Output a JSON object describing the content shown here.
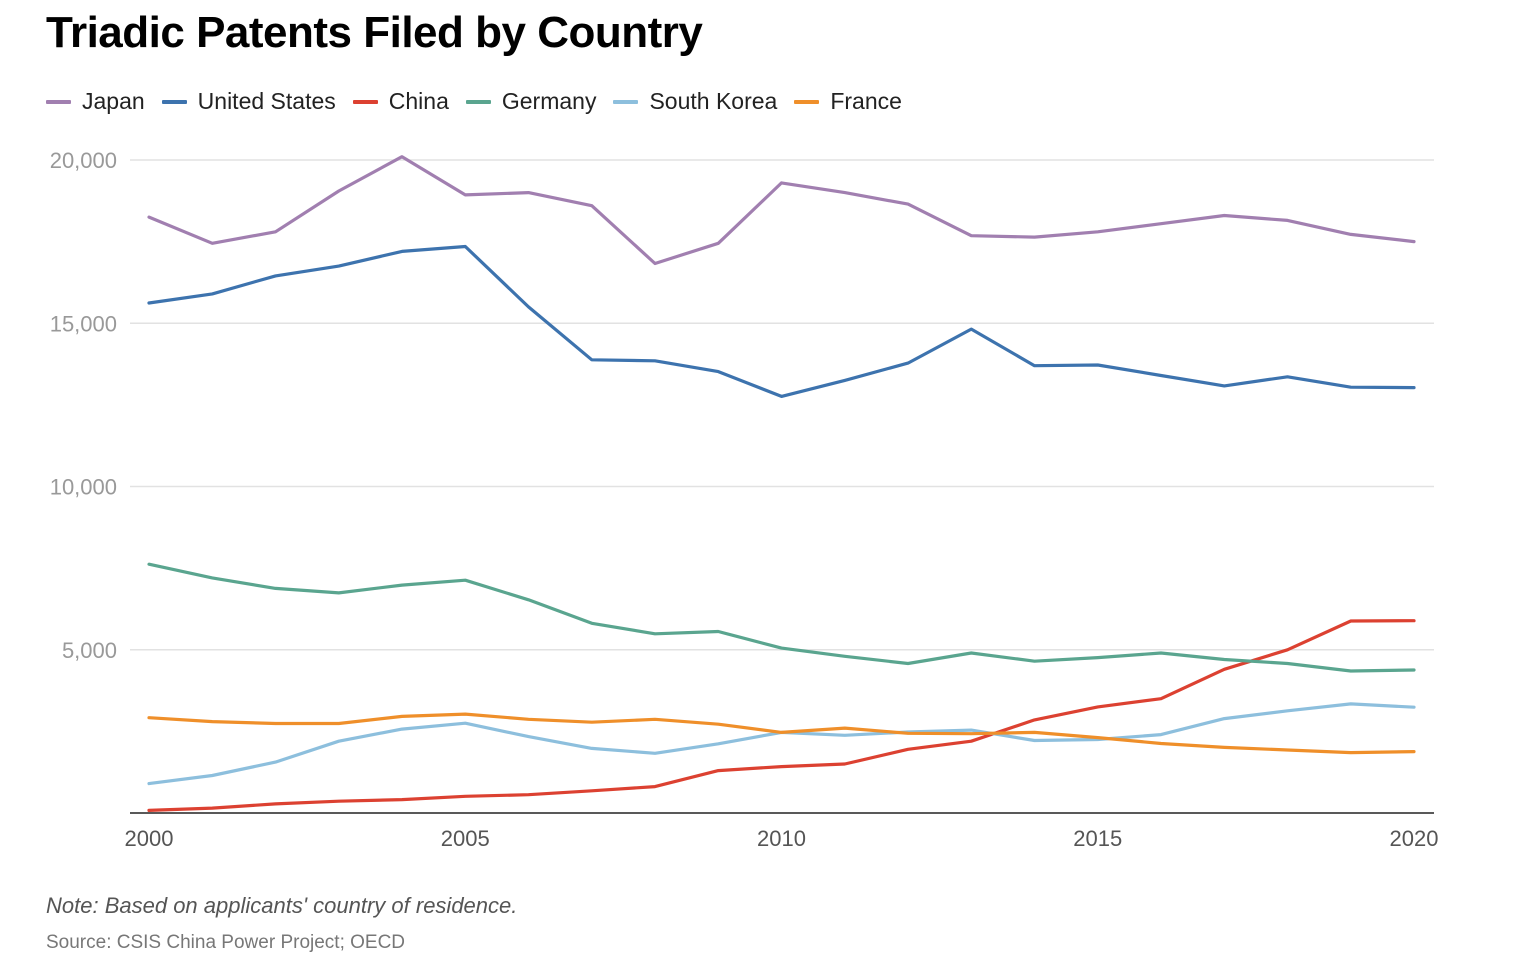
{
  "chart_data": {
    "type": "line",
    "title": "Triadic Patents Filed by Country",
    "xlabel": "",
    "ylabel": "",
    "x": [
      2000,
      2001,
      2002,
      2003,
      2004,
      2005,
      2006,
      2007,
      2008,
      2009,
      2010,
      2011,
      2012,
      2013,
      2014,
      2015,
      2016,
      2017,
      2018,
      2019,
      2020
    ],
    "xlim": [
      2000,
      2020
    ],
    "ylim": [
      0,
      20000
    ],
    "x_ticks": [
      "2000",
      "2005",
      "2010",
      "2015",
      "2020"
    ],
    "y_ticks": [
      "5,000",
      "10,000",
      "15,000",
      "20,000"
    ],
    "legend_position": "top-left",
    "grid": true,
    "series": [
      {
        "name": "Japan",
        "color": "#a17fb0",
        "values": [
          18250,
          17450,
          17800,
          19050,
          20100,
          18930,
          19000,
          18600,
          16830,
          17450,
          19300,
          19000,
          18650,
          17680,
          17640,
          17800,
          18050,
          18300,
          18150,
          17720,
          17500
        ]
      },
      {
        "name": "United States",
        "color": "#3d73ae",
        "values": [
          15620,
          15900,
          16450,
          16750,
          17200,
          17350,
          15500,
          13880,
          13850,
          13520,
          12760,
          13250,
          13780,
          14820,
          13700,
          13720,
          13400,
          13080,
          13360,
          13040,
          13030
        ]
      },
      {
        "name": "China",
        "color": "#dc4131",
        "values": [
          80,
          150,
          280,
          360,
          410,
          510,
          560,
          680,
          810,
          1300,
          1420,
          1500,
          1950,
          2200,
          2850,
          3250,
          3500,
          4400,
          5000,
          5880,
          5890
        ]
      },
      {
        "name": "Germany",
        "color": "#5aa58f",
        "values": [
          7620,
          7200,
          6880,
          6740,
          6980,
          7130,
          6530,
          5810,
          5490,
          5560,
          5050,
          4800,
          4580,
          4900,
          4650,
          4760,
          4900,
          4700,
          4580,
          4350,
          4380
        ]
      },
      {
        "name": "South Korea",
        "color": "#8dbfdd",
        "values": [
          900,
          1150,
          1560,
          2200,
          2570,
          2750,
          2340,
          1980,
          1830,
          2120,
          2470,
          2380,
          2480,
          2540,
          2220,
          2250,
          2400,
          2890,
          3130,
          3340,
          3240
        ]
      },
      {
        "name": "France",
        "color": "#ef8f2a",
        "values": [
          2920,
          2800,
          2740,
          2740,
          2960,
          3030,
          2870,
          2780,
          2870,
          2720,
          2470,
          2600,
          2440,
          2430,
          2470,
          2310,
          2130,
          2010,
          1930,
          1850,
          1880
        ]
      }
    ],
    "note": "Note: Based on applicants' country of residence.",
    "source": "Source: CSIS China Power Project; OECD"
  }
}
